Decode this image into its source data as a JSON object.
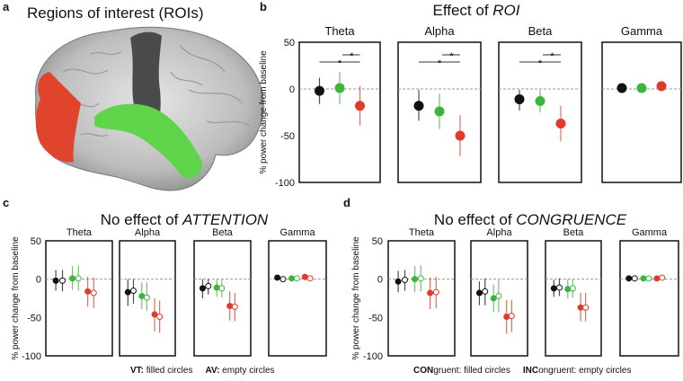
{
  "panel_a": {
    "label": "a",
    "title": "Regions of interest (ROIs)"
  },
  "chart_data": [
    {
      "panel": "b",
      "label": "b",
      "type": "scatter",
      "title_prefix": "Effect of ",
      "title_em": "ROI",
      "ylabel": "% power change from baseline",
      "ylim": [
        -100,
        50
      ],
      "yticks": [
        "50",
        "0",
        "-50",
        "-100"
      ],
      "ytick_values": [
        50,
        0,
        -50,
        -100
      ],
      "reference_line": 0,
      "colors": [
        "#111111",
        "#3cb53c",
        "#e03a2a"
      ],
      "bands": [
        {
          "name": "Theta",
          "significance": "*",
          "points": [
            {
              "mean": -2,
              "ci": [
                -16,
                12
              ]
            },
            {
              "mean": 1,
              "ci": [
                -16,
                18
              ]
            },
            {
              "mean": -18,
              "ci": [
                -39,
                3
              ]
            }
          ]
        },
        {
          "name": "Alpha",
          "significance": "*",
          "points": [
            {
              "mean": -18,
              "ci": [
                -34,
                -1
              ]
            },
            {
              "mean": -24,
              "ci": [
                -43,
                -5
              ]
            },
            {
              "mean": -50,
              "ci": [
                -72,
                -28
              ]
            }
          ]
        },
        {
          "name": "Beta",
          "significance": "*",
          "points": [
            {
              "mean": -11,
              "ci": [
                -23,
                -1
              ]
            },
            {
              "mean": -13,
              "ci": [
                -25,
                -1
              ]
            },
            {
              "mean": -37,
              "ci": [
                -56,
                -18
              ]
            }
          ]
        },
        {
          "name": "Gamma",
          "significance": "",
          "points": [
            {
              "mean": 1,
              "ci": [
                -1,
                3
              ]
            },
            {
              "mean": 1,
              "ci": [
                -2,
                6
              ]
            },
            {
              "mean": 3,
              "ci": [
                1,
                4
              ]
            }
          ]
        }
      ]
    },
    {
      "panel": "c",
      "label": "c",
      "type": "scatter",
      "title_prefix": "No effect of ",
      "title_em": "ATTENTION",
      "ylabel": "% power change from baseline",
      "ylim": [
        -100,
        50
      ],
      "yticks": [
        "50",
        "0",
        "-50",
        "-100"
      ],
      "ytick_values": [
        50,
        0,
        -50,
        -100
      ],
      "colors": [
        "#111111",
        "#3cb53c",
        "#e03a2a"
      ],
      "legend": [
        {
          "bold": "VT:",
          "text": " filled circles"
        },
        {
          "bold": "AV:",
          "text": " empty circles"
        }
      ],
      "bands": [
        {
          "name": "Theta",
          "points": [
            {
              "mean": -2,
              "ci": [
                -15,
                12
              ],
              "filled": true
            },
            {
              "mean": -2,
              "ci": [
                -16,
                12
              ],
              "filled": false
            },
            {
              "mean": 1,
              "ci": [
                -14,
                17
              ],
              "filled": true
            },
            {
              "mean": 1,
              "ci": [
                -15,
                18
              ],
              "filled": false
            },
            {
              "mean": -16,
              "ci": [
                -36,
                3
              ],
              "filled": true
            },
            {
              "mean": -18,
              "ci": [
                -38,
                2
              ],
              "filled": false
            }
          ]
        },
        {
          "name": "Alpha",
          "points": [
            {
              "mean": -17,
              "ci": [
                -35,
                0
              ],
              "filled": true
            },
            {
              "mean": -15,
              "ci": [
                -32,
                0
              ],
              "filled": false
            },
            {
              "mean": -22,
              "ci": [
                -39,
                -4
              ],
              "filled": true
            },
            {
              "mean": -24,
              "ci": [
                -41,
                -4
              ],
              "filled": false
            },
            {
              "mean": -46,
              "ci": [
                -68,
                -25
              ],
              "filled": true
            },
            {
              "mean": -49,
              "ci": [
                -70,
                -28
              ],
              "filled": false
            }
          ]
        },
        {
          "name": "Beta",
          "points": [
            {
              "mean": -12,
              "ci": [
                -25,
                0
              ],
              "filled": true
            },
            {
              "mean": -9,
              "ci": [
                -20,
                0
              ],
              "filled": false
            },
            {
              "mean": -11,
              "ci": [
                -23,
                0
              ],
              "filled": true
            },
            {
              "mean": -12,
              "ci": [
                -24,
                0
              ],
              "filled": false
            },
            {
              "mean": -35,
              "ci": [
                -54,
                -16
              ],
              "filled": true
            },
            {
              "mean": -36,
              "ci": [
                -55,
                -18
              ],
              "filled": false
            }
          ]
        },
        {
          "name": "Gamma",
          "points": [
            {
              "mean": 2,
              "ci": [
                -1,
                5
              ],
              "filled": true
            },
            {
              "mean": 0,
              "ci": [
                -2,
                2
              ],
              "filled": false
            },
            {
              "mean": 1,
              "ci": [
                -2,
                4
              ],
              "filled": true
            },
            {
              "mean": 1,
              "ci": [
                -1,
                3
              ],
              "filled": false
            },
            {
              "mean": 3,
              "ci": [
                0,
                5
              ],
              "filled": true
            },
            {
              "mean": 1,
              "ci": [
                -2,
                4
              ],
              "filled": false
            }
          ]
        }
      ]
    },
    {
      "panel": "d",
      "label": "d",
      "type": "scatter",
      "title_prefix": "No effect of ",
      "title_em": "CONGRUENCE",
      "ylabel": "% power change from baseline",
      "ylim": [
        -100,
        50
      ],
      "yticks": [
        "50",
        "0",
        "-50",
        "-100"
      ],
      "ytick_values": [
        50,
        0,
        -50,
        -100
      ],
      "colors": [
        "#111111",
        "#3cb53c",
        "#e03a2a"
      ],
      "legend": [
        {
          "bold": "CON",
          "text": "gruent: filled circles"
        },
        {
          "bold": "INC",
          "text": "ongruent: empty circles"
        }
      ],
      "bands": [
        {
          "name": "Theta",
          "points": [
            {
              "mean": -3,
              "ci": [
                -17,
                11
              ],
              "filled": true
            },
            {
              "mean": -1,
              "ci": [
                -15,
                12
              ],
              "filled": false
            },
            {
              "mean": 0,
              "ci": [
                -17,
                17
              ],
              "filled": true
            },
            {
              "mean": 1,
              "ci": [
                -16,
                18
              ],
              "filled": false
            },
            {
              "mean": -18,
              "ci": [
                -39,
                2
              ],
              "filled": true
            },
            {
              "mean": -17,
              "ci": [
                -38,
                3
              ],
              "filled": false
            }
          ]
        },
        {
          "name": "Alpha",
          "points": [
            {
              "mean": -18,
              "ci": [
                -34,
                -3
              ],
              "filled": true
            },
            {
              "mean": -16,
              "ci": [
                -34,
                1
              ],
              "filled": false
            },
            {
              "mean": -25,
              "ci": [
                -43,
                -7
              ],
              "filled": true
            },
            {
              "mean": -22,
              "ci": [
                -43,
                -1
              ],
              "filled": false
            },
            {
              "mean": -49,
              "ci": [
                -71,
                -27
              ],
              "filled": true
            },
            {
              "mean": -48,
              "ci": [
                -69,
                -27
              ],
              "filled": false
            }
          ]
        },
        {
          "name": "Beta",
          "points": [
            {
              "mean": -12,
              "ci": [
                -23,
                -1
              ],
              "filled": true
            },
            {
              "mean": -11,
              "ci": [
                -22,
                1
              ],
              "filled": false
            },
            {
              "mean": -13,
              "ci": [
                -25,
                0
              ],
              "filled": true
            },
            {
              "mean": -12,
              "ci": [
                -24,
                0
              ],
              "filled": false
            },
            {
              "mean": -37,
              "ci": [
                -55,
                -18
              ],
              "filled": true
            },
            {
              "mean": -37,
              "ci": [
                -55,
                -18
              ],
              "filled": false
            }
          ]
        },
        {
          "name": "Gamma",
          "points": [
            {
              "mean": 1,
              "ci": [
                -1,
                3
              ],
              "filled": true
            },
            {
              "mean": 1,
              "ci": [
                -1,
                3
              ],
              "filled": false
            },
            {
              "mean": 1,
              "ci": [
                -1,
                3
              ],
              "filled": true
            },
            {
              "mean": 1,
              "ci": [
                -1,
                3
              ],
              "filled": false
            },
            {
              "mean": 1,
              "ci": [
                -1,
                4
              ],
              "filled": true
            },
            {
              "mean": 2,
              "ci": [
                -1,
                4
              ],
              "filled": false
            }
          ]
        }
      ]
    }
  ]
}
